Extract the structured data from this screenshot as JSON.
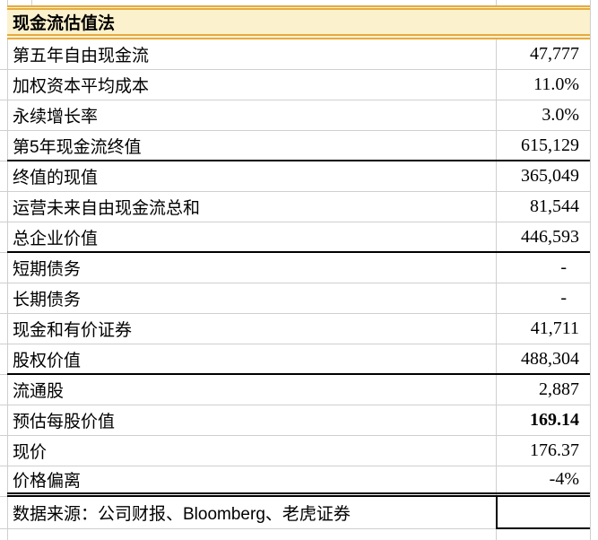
{
  "header": {
    "title": "现金流估值法"
  },
  "rows": [
    {
      "label": "第五年自由现金流",
      "value": "47,777"
    },
    {
      "label": "加权资本平均成本",
      "value": "11.0%"
    },
    {
      "label": "永续增长率",
      "value": "3.0%"
    },
    {
      "label": "第5年现金流终值",
      "value": "615,129"
    },
    {
      "label": "终值的现值",
      "value": "365,049"
    },
    {
      "label": "运营未来自由现金流总和",
      "value": "81,544"
    },
    {
      "label": "总企业价值",
      "value": "446,593"
    },
    {
      "label": "短期债务",
      "value": "-"
    },
    {
      "label": "长期债务",
      "value": "-"
    },
    {
      "label": "现金和有价证券",
      "value": "41,711"
    },
    {
      "label": "股权价值",
      "value": "488,304"
    },
    {
      "label": "流通股",
      "value": "2,887"
    },
    {
      "label": "预估每股价值",
      "value": "169.14"
    },
    {
      "label": "现价",
      "value": "176.37"
    },
    {
      "label": "价格偏离",
      "value": "-4%"
    }
  ],
  "footer": {
    "source": "数据来源：公司财报、Bloomberg、老虎证券"
  },
  "colors": {
    "header_background": "#fcf1cd",
    "header_border_gold": "#e6ab3e",
    "gridline": "#cfcfcf",
    "separator": "#000000",
    "text": "#000000"
  }
}
